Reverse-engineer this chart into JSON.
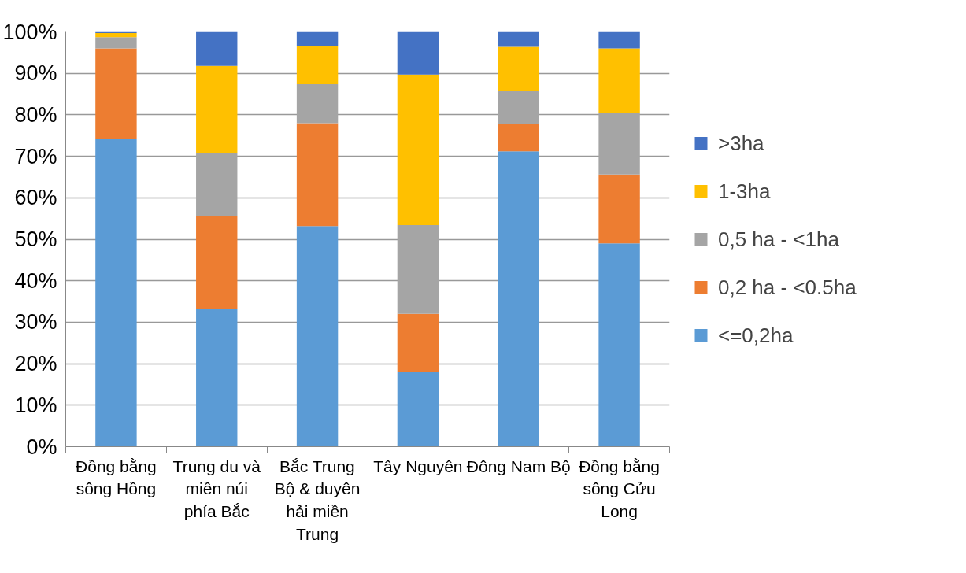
{
  "chart_data": {
    "type": "bar",
    "stacked": true,
    "categories": [
      "Đồng bằng sông Hồng",
      "Trung du và miền núi phía Bắc",
      "Bắc Trung Bộ & duyên hải miền Trung",
      "Tây Nguyên",
      "Đông Nam Bộ",
      "Đồng bằng sông Cửu Long"
    ],
    "series": [
      {
        "name": "<=0,2ha",
        "color": "#5b9bd5",
        "values": [
          74.2,
          33.1,
          53.2,
          18.0,
          71.2,
          49.0
        ]
      },
      {
        "name": "0,2 ha - <0.5ha",
        "color": "#ed7d31",
        "values": [
          21.8,
          22.4,
          24.8,
          14.0,
          6.7,
          16.6
        ]
      },
      {
        "name": "0,5 ha - <1ha",
        "color": "#a5a5a5",
        "values": [
          2.7,
          15.3,
          9.4,
          21.4,
          7.9,
          14.9
        ]
      },
      {
        "name": "1-3ha",
        "color": "#ffc000",
        "values": [
          1.0,
          21.0,
          9.1,
          36.3,
          10.6,
          15.5
        ]
      },
      {
        "name": ">3ha",
        "color": "#4472c4",
        "values": [
          0.3,
          8.2,
          3.5,
          10.3,
          3.6,
          4.0
        ]
      }
    ],
    "ylim": [
      0,
      100
    ],
    "yticks": [
      {
        "value": 0,
        "label": "0%"
      },
      {
        "value": 10,
        "label": "10%"
      },
      {
        "value": 20,
        "label": "20%"
      },
      {
        "value": 30,
        "label": "30%"
      },
      {
        "value": 40,
        "label": "40%"
      },
      {
        "value": 50,
        "label": "50%"
      },
      {
        "value": 60,
        "label": "60%"
      },
      {
        "value": 70,
        "label": "70%"
      },
      {
        "value": 80,
        "label": "80%"
      },
      {
        "value": 90,
        "label": "90%"
      },
      {
        "value": 100,
        "label": "100%"
      }
    ],
    "grid": "y",
    "legend": "right"
  }
}
